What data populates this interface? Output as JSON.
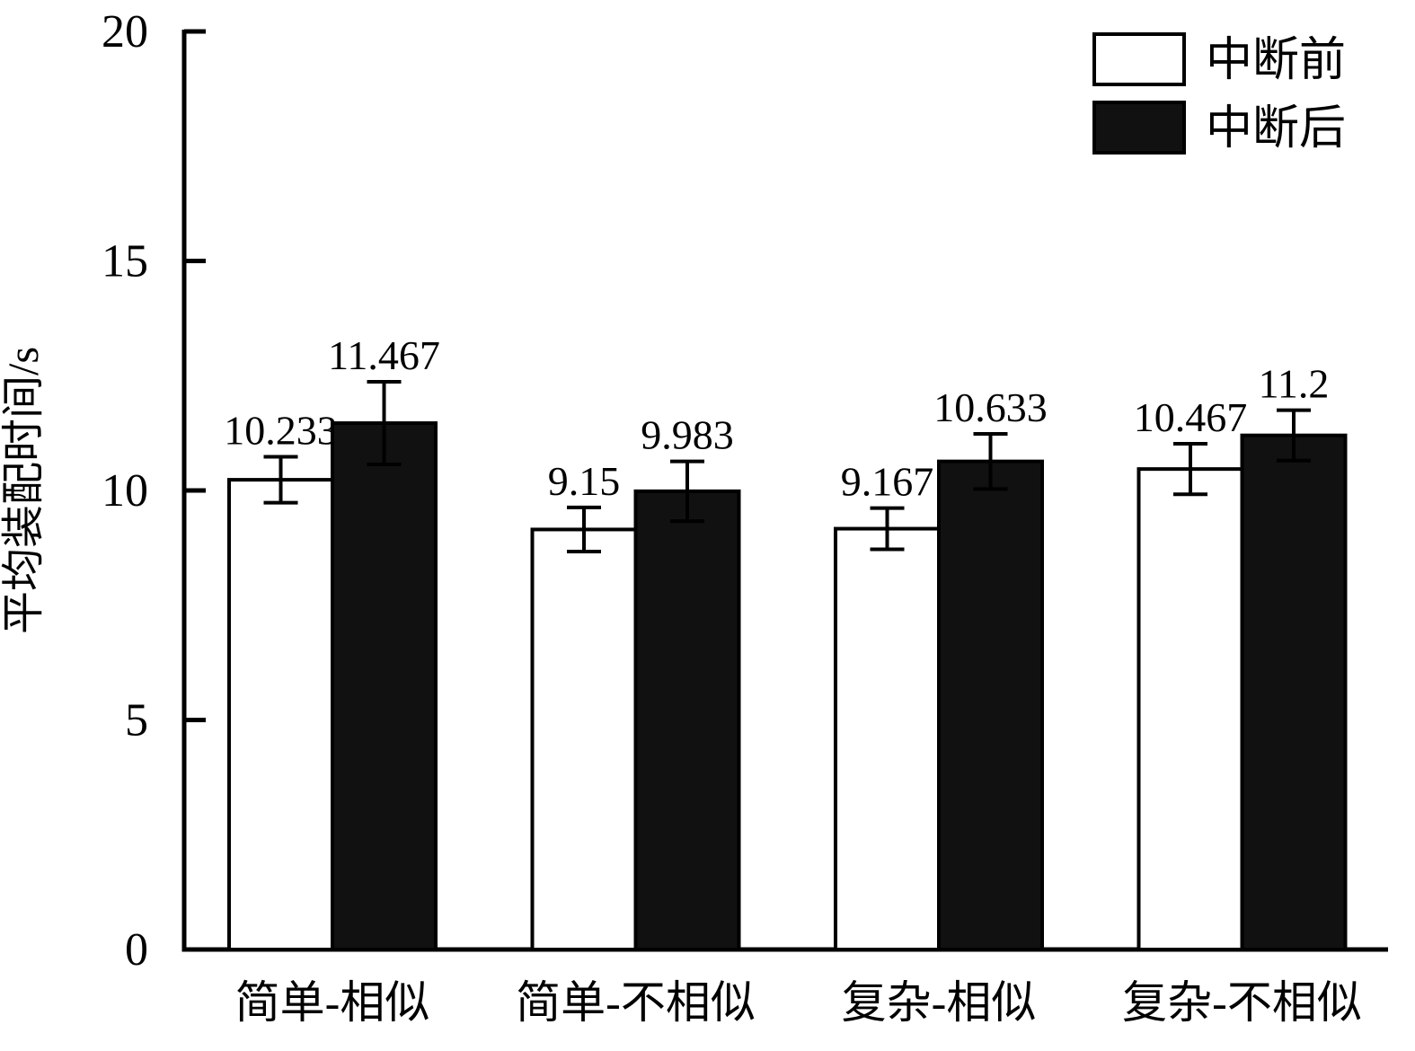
{
  "chart_data": {
    "type": "bar",
    "title": "",
    "xlabel": "",
    "ylabel": "平均装配时间/s",
    "ylim": [
      0,
      20
    ],
    "yticks": [
      0,
      5,
      10,
      15,
      20
    ],
    "grid": false,
    "legend_position": "top-right",
    "categories": [
      "简单-相似",
      "简单-不相似",
      "复杂-相似",
      "复杂-不相似"
    ],
    "series": [
      {
        "name": "中断前",
        "fill": "#ffffff",
        "values": [
          10.233,
          9.15,
          9.167,
          10.467
        ],
        "errors": [
          0.5,
          0.48,
          0.45,
          0.55
        ],
        "labels": [
          "10.233",
          "9.15",
          "9.167",
          "10.467"
        ]
      },
      {
        "name": "中断后",
        "fill": "#111111",
        "values": [
          11.467,
          9.983,
          10.633,
          11.2
        ],
        "errors": [
          0.9,
          0.65,
          0.6,
          0.55
        ],
        "labels": [
          "11.467",
          "9.983",
          "10.633",
          "11.2"
        ]
      }
    ],
    "colors": {
      "axis": "#000000",
      "bar_outline": "#000000",
      "error_bar": "#000000",
      "text": "#000000",
      "background": "#ffffff"
    }
  }
}
